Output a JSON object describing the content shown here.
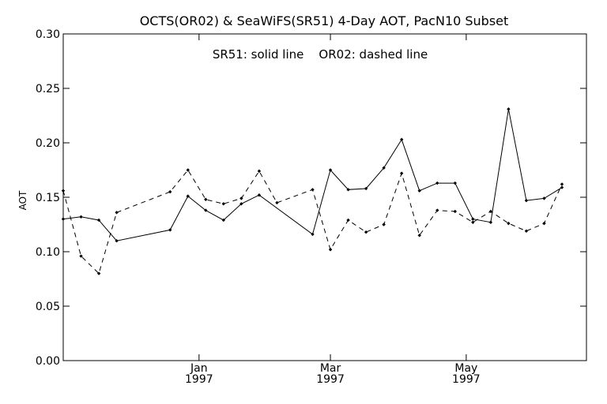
{
  "chart_data": {
    "type": "line",
    "title": "OCTS(OR02) & SeaWiFS(SR51) 4-Day AOT, PacN10 Subset",
    "annotation": "SR51: solid line    OR02: dashed line",
    "ylabel": "AOT",
    "xlabel": "",
    "ylim": [
      0,
      0.3
    ],
    "yticks": [
      "0.00",
      "0.05",
      "0.10",
      "0.15",
      "0.20",
      "0.25",
      "0.30"
    ],
    "xlim": [
      "1996-11-01",
      "1997-06-24"
    ],
    "xticks": [
      {
        "date": "1997-01-01",
        "month": "Jan",
        "year": "1997"
      },
      {
        "date": "1997-03-01",
        "month": "Mar",
        "year": "1997"
      },
      {
        "date": "1997-05-01",
        "month": "May",
        "year": "1997"
      }
    ],
    "grid": false,
    "series": [
      {
        "name": "SR51",
        "style": "solid",
        "x": [
          "1996-11-01",
          "1996-11-09",
          "1996-11-17",
          "1996-11-25",
          "1996-12-19",
          "1996-12-27",
          "1997-01-04",
          "1997-01-12",
          "1997-01-20",
          "1997-01-28",
          "1997-02-21",
          "1997-03-01",
          "1997-03-09",
          "1997-03-17",
          "1997-03-25",
          "1997-04-02",
          "1997-04-10",
          "1997-04-18",
          "1997-04-26",
          "1997-05-04",
          "1997-05-12",
          "1997-05-20",
          "1997-05-28",
          "1997-06-05",
          "1997-06-13"
        ],
        "values": [
          0.13,
          0.132,
          0.129,
          0.11,
          0.12,
          0.151,
          0.138,
          0.129,
          0.144,
          0.152,
          0.116,
          0.175,
          0.157,
          0.158,
          0.177,
          0.203,
          0.156,
          0.163,
          0.163,
          0.13,
          0.127,
          0.231,
          0.147,
          0.149,
          0.159
        ]
      },
      {
        "name": "OR02",
        "style": "dashed",
        "x": [
          "1996-11-01",
          "1996-11-09",
          "1996-11-17",
          "1996-11-25",
          "1996-12-19",
          "1996-12-27",
          "1997-01-04",
          "1997-01-12",
          "1997-01-20",
          "1997-01-28",
          "1997-02-05",
          "1997-02-21",
          "1997-03-01",
          "1997-03-09",
          "1997-03-17",
          "1997-03-25",
          "1997-04-02",
          "1997-04-10",
          "1997-04-18",
          "1997-04-26",
          "1997-05-04",
          "1997-05-12",
          "1997-05-20",
          "1997-05-28",
          "1997-06-05",
          "1997-06-13"
        ],
        "values": [
          0.156,
          0.096,
          0.08,
          0.136,
          0.155,
          0.175,
          0.148,
          0.144,
          0.149,
          0.174,
          0.145,
          0.157,
          0.102,
          0.129,
          0.118,
          0.125,
          0.172,
          0.115,
          0.138,
          0.137,
          0.127,
          0.137,
          0.126,
          0.119,
          0.126,
          0.162
        ]
      }
    ]
  }
}
